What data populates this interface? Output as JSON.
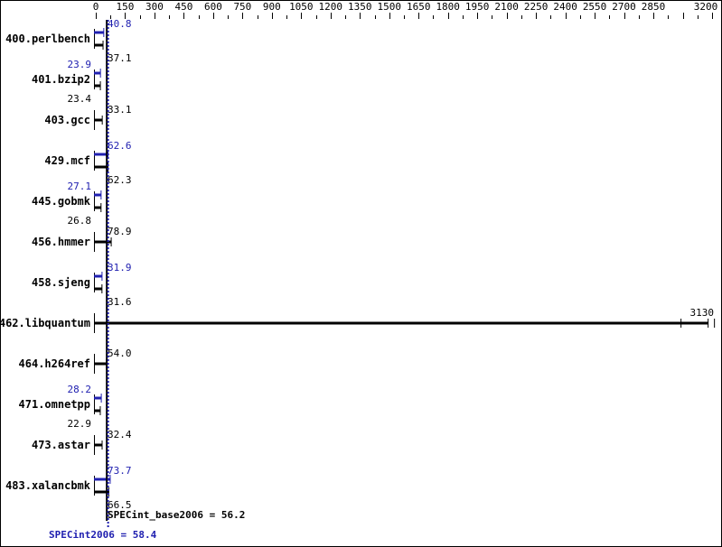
{
  "chart_data": {
    "type": "bar",
    "orientation": "horizontal",
    "xlim": [
      0,
      3200
    ],
    "x_ticks": [
      0,
      150,
      300,
      450,
      600,
      750,
      900,
      1050,
      1200,
      1350,
      1500,
      1650,
      1800,
      1950,
      2100,
      2250,
      2400,
      2550,
      2700,
      2850,
      3200
    ],
    "categories": [
      "400.perlbench",
      "401.bzip2",
      "403.gcc",
      "429.mcf",
      "445.gobmk",
      "456.hmmer",
      "458.sjeng",
      "462.libquantum",
      "464.h264ref",
      "471.omnetpp",
      "473.astar",
      "483.xalancbmk"
    ],
    "series": [
      {
        "key": "base",
        "color": "#000000",
        "values": [
          37.1,
          23.4,
          33.1,
          62.3,
          26.8,
          78.9,
          31.6,
          3130,
          54.0,
          22.9,
          32.4,
          66.5
        ]
      },
      {
        "key": "peak",
        "color": "#2020b0",
        "values": [
          40.8,
          23.9,
          null,
          62.6,
          27.1,
          null,
          31.9,
          null,
          null,
          28.2,
          null,
          73.7
        ]
      }
    ],
    "base_labels": [
      "37.1",
      "23.4",
      "33.1",
      "62.3",
      "26.8",
      "78.9",
      "31.6",
      "3130",
      "54.0",
      "22.9",
      "32.4",
      "66.5"
    ],
    "peak_labels": [
      "40.8",
      "23.9",
      "",
      "62.6",
      "27.1",
      "",
      "31.9",
      "",
      "",
      "28.2",
      "",
      "73.7"
    ],
    "base_mean": 56.2,
    "peak_mean": 58.4,
    "base_mean_label": "SPECint_base2006 = 56.2",
    "peak_mean_label": "SPECint2006 = 58.4"
  }
}
